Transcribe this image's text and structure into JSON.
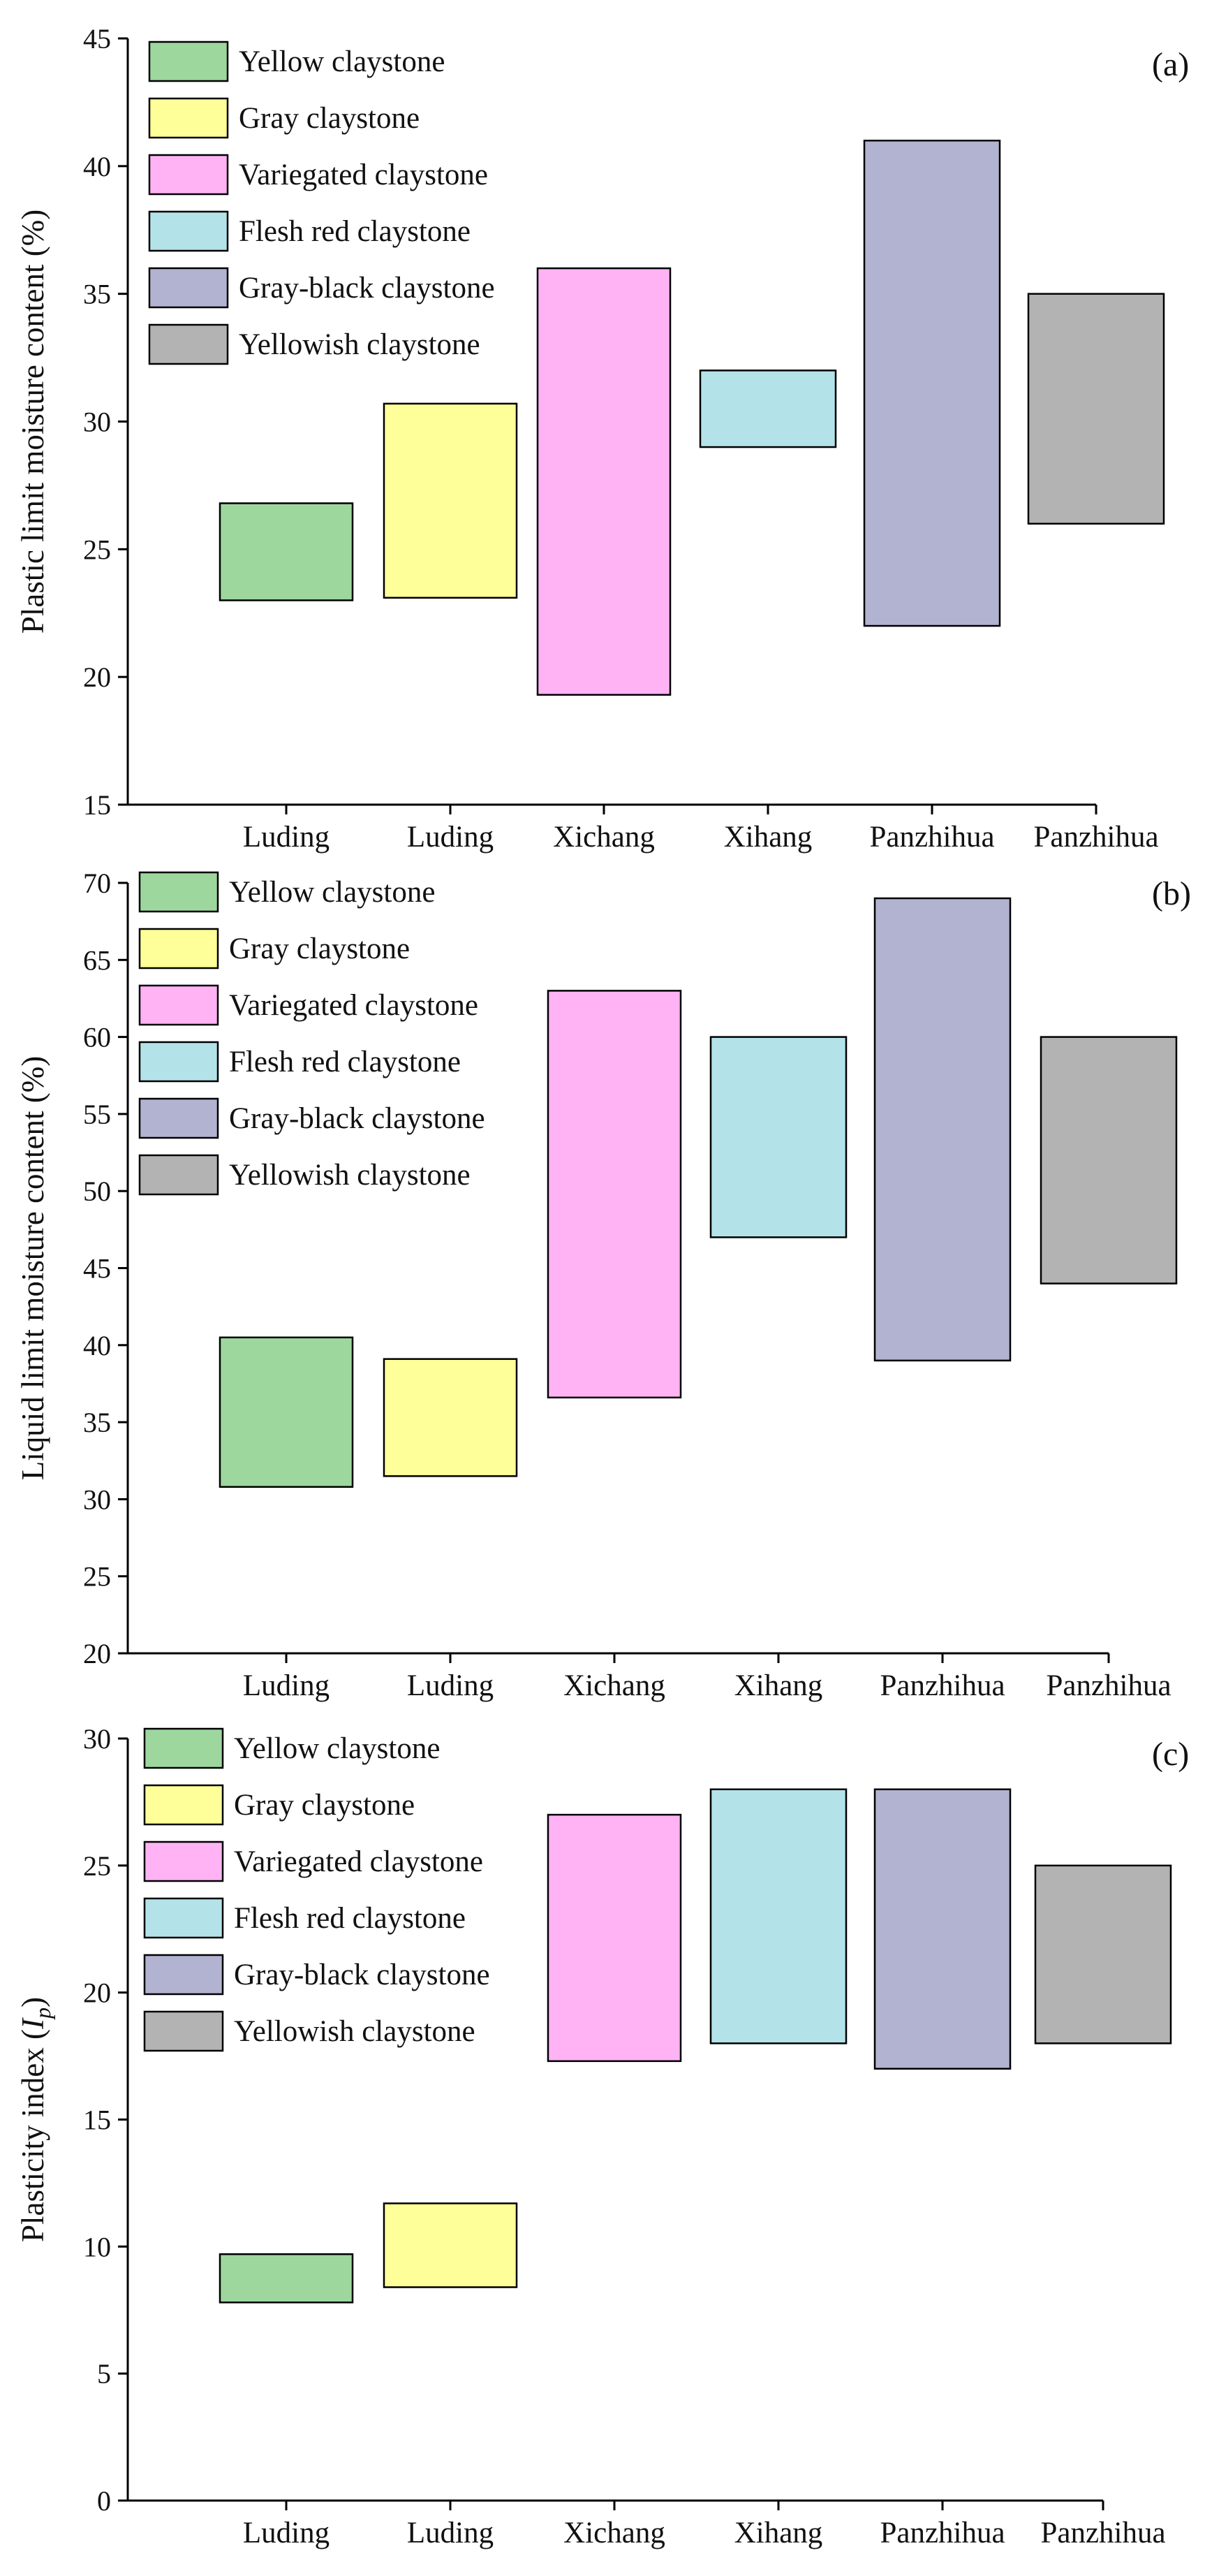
{
  "chart_data": [
    {
      "type": "floating-bar",
      "panel_tag": "(a)",
      "ylabel": "Plastic limit moisture content (%)",
      "ylim": [
        15,
        45
      ],
      "yticks": [
        15,
        20,
        25,
        30,
        35,
        40,
        45
      ],
      "categories": [
        "Luding",
        "Luding",
        "Xichang",
        "Xihang",
        "Panzhihua",
        "Panzhihua"
      ],
      "series": [
        {
          "name": "Yellow claystone",
          "color": "#9dd79d",
          "low": 23.0,
          "high": 26.8
        },
        {
          "name": "Gray claystone",
          "color": "#ffff99",
          "low": 23.1,
          "high": 30.7
        },
        {
          "name": "Variegated claystone",
          "color": "#ffb3f5",
          "low": 19.3,
          "high": 36.0
        },
        {
          "name": "Flesh red claystone",
          "color": "#b3e3e8",
          "low": 29.0,
          "high": 32.0
        },
        {
          "name": "Gray-black claystone",
          "color": "#b2b2d1",
          "low": 22.0,
          "high": 41.0
        },
        {
          "name": "Yellowish claystone",
          "color": "#b3b3b3",
          "low": 26.0,
          "high": 35.0
        }
      ],
      "legend_position": "top-left"
    },
    {
      "type": "floating-bar",
      "panel_tag": "(b)",
      "ylabel": "Liquid limit moisture content (%)",
      "ylim": [
        20,
        70
      ],
      "yticks": [
        20,
        25,
        30,
        35,
        40,
        45,
        50,
        55,
        60,
        65,
        70
      ],
      "categories": [
        "Luding",
        "Luding",
        "Xichang",
        "Xihang",
        "Panzhihua",
        "Panzhihua"
      ],
      "series": [
        {
          "name": "Yellow claystone",
          "color": "#9dd79d",
          "low": 30.8,
          "high": 40.5
        },
        {
          "name": "Gray claystone",
          "color": "#ffff99",
          "low": 31.5,
          "high": 39.1
        },
        {
          "name": "Variegated claystone",
          "color": "#ffb3f5",
          "low": 36.6,
          "high": 63.0
        },
        {
          "name": "Flesh red claystone",
          "color": "#b3e3e8",
          "low": 47.0,
          "high": 60.0
        },
        {
          "name": "Gray-black claystone",
          "color": "#b2b2d1",
          "low": 39.0,
          "high": 69.0
        },
        {
          "name": "Yellowish claystone",
          "color": "#b3b3b3",
          "low": 44.0,
          "high": 60.0
        }
      ],
      "legend_position": "top-left"
    },
    {
      "type": "floating-bar",
      "panel_tag": "(c)",
      "ylabel_main": "Plasticity index (",
      "ylabel_italic": "I",
      "ylabel_sub": "p",
      "ylabel_end": ")",
      "ylim": [
        0,
        30
      ],
      "yticks": [
        0,
        5,
        10,
        15,
        20,
        25,
        30
      ],
      "categories": [
        "Luding",
        "Luding",
        "Xichang",
        "Xihang",
        "Panzhihua",
        "Panzhihua"
      ],
      "series": [
        {
          "name": "Yellow claystone",
          "color": "#9dd79d",
          "low": 7.8,
          "high": 9.7
        },
        {
          "name": "Gray claystone",
          "color": "#ffff99",
          "low": 8.4,
          "high": 11.7
        },
        {
          "name": "Variegated claystone",
          "color": "#ffb3f5",
          "low": 17.3,
          "high": 27.0
        },
        {
          "name": "Flesh red claystone",
          "color": "#b3e3e8",
          "low": 18.0,
          "high": 28.0
        },
        {
          "name": "Gray-black claystone",
          "color": "#b2b2d1",
          "low": 17.0,
          "high": 28.0
        },
        {
          "name": "Yellowish claystone",
          "color": "#b3b3b3",
          "low": 18.0,
          "high": 25.0
        }
      ],
      "legend_position": "top-left"
    }
  ]
}
